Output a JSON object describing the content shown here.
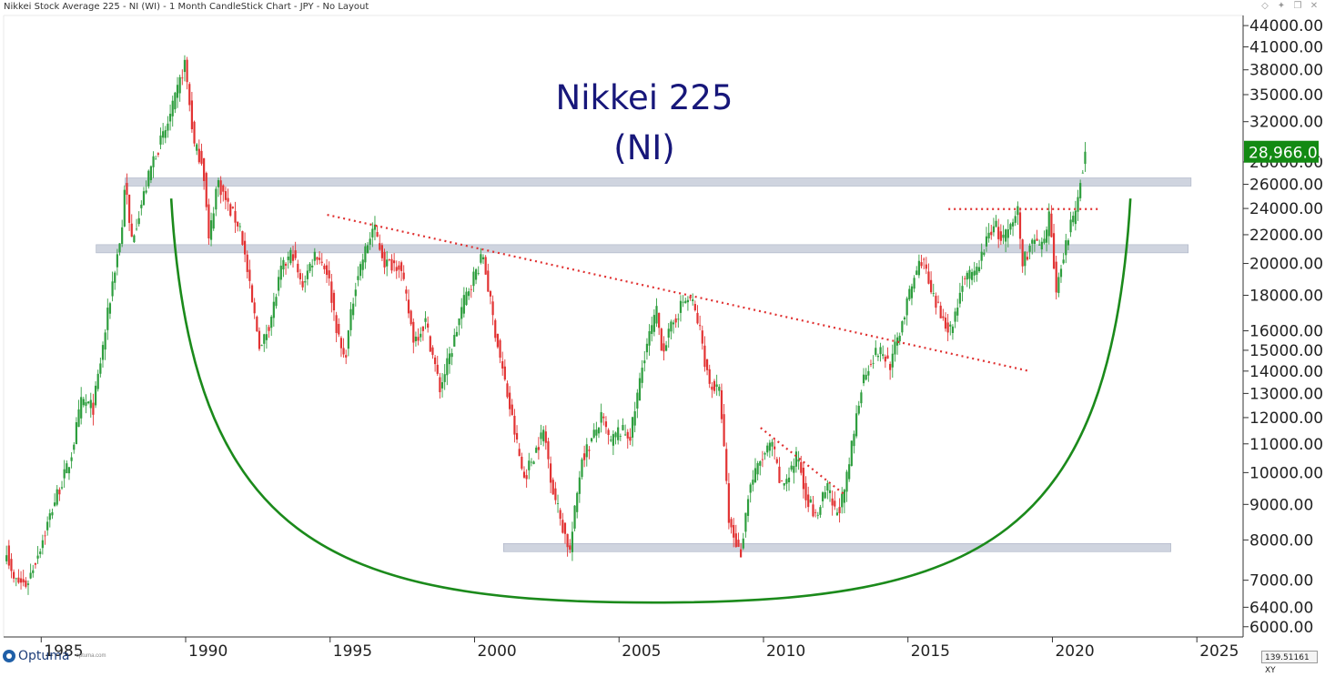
{
  "window": {
    "title": "Nikkei Stock Average 225 - NI (WI) - 1 Month CandleStick Chart - JPY - No Layout",
    "controls": [
      "diamond-icon",
      "pin-icon",
      "restore-icon",
      "close-icon"
    ]
  },
  "logo": {
    "text": "Optuma",
    "sub": "optuma.com"
  },
  "cursor_readout": "139.51161 XY",
  "colors": {
    "up": "#2e9e3e",
    "down": "#e23333",
    "bowl": "#1b8a1b",
    "trend": "#e03030",
    "zone": "#cfd4df",
    "title": "#17177a",
    "price_tag": "#138a13"
  },
  "chart_data": {
    "type": "candlestick",
    "title": "Nikkei 225",
    "subtitle": "(NI)",
    "interval": "1 Month",
    "currency": "JPY",
    "y_scale": "log",
    "ylim": [
      5800,
      45500
    ],
    "xlim": [
      1983.7,
      2026.6
    ],
    "y_ticks": [
      "44000.00",
      "41000.00",
      "38000.00",
      "35000.00",
      "32000.00",
      "28000.00",
      "26000.00",
      "24000.00",
      "22000.00",
      "20000.00",
      "18000.00",
      "16000.00",
      "15000.00",
      "14000.00",
      "13000.00",
      "12000.00",
      "11000.00",
      "10000.00",
      "9000.00",
      "8000.00",
      "7000.00",
      "6400.00",
      "6000.00"
    ],
    "x_ticks": [
      "1985",
      "1990",
      "1995",
      "2000",
      "2005",
      "2010",
      "2015",
      "2020",
      "2025"
    ],
    "last_price": "28,966.01",
    "last_price_value": 28966,
    "path": [
      [
        1983.8,
        7800
      ],
      [
        1984.0,
        7000
      ],
      [
        1984.5,
        6900
      ],
      [
        1985.0,
        7900
      ],
      [
        1985.5,
        9200
      ],
      [
        1986.0,
        10400
      ],
      [
        1986.4,
        12700
      ],
      [
        1986.8,
        12400
      ],
      [
        1987.2,
        15800
      ],
      [
        1987.5,
        19200
      ],
      [
        1987.8,
        22500
      ],
      [
        1987.9,
        26600
      ],
      [
        1988.1,
        21500
      ],
      [
        1988.3,
        23000
      ],
      [
        1988.6,
        25500
      ],
      [
        1988.9,
        28500
      ],
      [
        1989.3,
        31000
      ],
      [
        1989.6,
        34000
      ],
      [
        1989.97,
        38900
      ],
      [
        1990.3,
        29500
      ],
      [
        1990.6,
        28000
      ],
      [
        1990.8,
        21500
      ],
      [
        1991.1,
        26400
      ],
      [
        1991.5,
        24000
      ],
      [
        1991.9,
        22500
      ],
      [
        1992.3,
        17500
      ],
      [
        1992.6,
        15000
      ],
      [
        1993.0,
        17000
      ],
      [
        1993.3,
        19500
      ],
      [
        1993.7,
        20800
      ],
      [
        1994.0,
        18500
      ],
      [
        1994.5,
        20800
      ],
      [
        1994.9,
        19500
      ],
      [
        1995.3,
        15500
      ],
      [
        1995.5,
        14500
      ],
      [
        1995.9,
        19000
      ],
      [
        1996.5,
        22600
      ],
      [
        1996.9,
        20000
      ],
      [
        1997.4,
        20000
      ],
      [
        1997.9,
        15500
      ],
      [
        1998.3,
        16500
      ],
      [
        1998.8,
        13200
      ],
      [
        1999.2,
        15000
      ],
      [
        1999.6,
        17500
      ],
      [
        1999.9,
        18900
      ],
      [
        2000.3,
        20500
      ],
      [
        2000.6,
        17000
      ],
      [
        2000.9,
        14500
      ],
      [
        2001.2,
        12500
      ],
      [
        2001.7,
        9800
      ],
      [
        2002.0,
        10500
      ],
      [
        2002.4,
        11500
      ],
      [
        2002.7,
        9500
      ],
      [
        2003.0,
        8500
      ],
      [
        2003.3,
        7700
      ],
      [
        2003.7,
        10500
      ],
      [
        2004.0,
        11000
      ],
      [
        2004.4,
        12000
      ],
      [
        2004.7,
        11000
      ],
      [
        2005.0,
        11500
      ],
      [
        2005.4,
        11300
      ],
      [
        2005.9,
        15000
      ],
      [
        2006.3,
        17000
      ],
      [
        2006.5,
        15000
      ],
      [
        2006.9,
        16500
      ],
      [
        2007.2,
        17600
      ],
      [
        2007.5,
        17800
      ],
      [
        2007.8,
        16000
      ],
      [
        2008.1,
        13500
      ],
      [
        2008.5,
        13000
      ],
      [
        2008.8,
        8500
      ],
      [
        2009.2,
        7600
      ],
      [
        2009.5,
        9500
      ],
      [
        2009.9,
        10400
      ],
      [
        2010.3,
        11000
      ],
      [
        2010.6,
        9500
      ],
      [
        2010.9,
        10000
      ],
      [
        2011.2,
        10600
      ],
      [
        2011.4,
        9500
      ],
      [
        2011.8,
        8600
      ],
      [
        2012.2,
        9500
      ],
      [
        2012.5,
        8700
      ],
      [
        2012.8,
        9300
      ],
      [
        2013.1,
        11200
      ],
      [
        2013.4,
        13500
      ],
      [
        2013.7,
        14500
      ],
      [
        2014.0,
        15000
      ],
      [
        2014.4,
        14300
      ],
      [
        2014.8,
        16500
      ],
      [
        2015.2,
        19000
      ],
      [
        2015.5,
        20500
      ],
      [
        2015.8,
        18000
      ],
      [
        2016.1,
        17000
      ],
      [
        2016.5,
        16000
      ],
      [
        2016.9,
        19000
      ],
      [
        2017.3,
        19200
      ],
      [
        2017.8,
        22000
      ],
      [
        2018.0,
        23000
      ],
      [
        2018.2,
        21500
      ],
      [
        2018.6,
        22500
      ],
      [
        2018.8,
        24000
      ],
      [
        2018.95,
        20000
      ],
      [
        2019.3,
        21500
      ],
      [
        2019.7,
        21000
      ],
      [
        2019.9,
        23500
      ],
      [
        2020.15,
        18000
      ],
      [
        2020.3,
        20000
      ],
      [
        2020.6,
        22500
      ],
      [
        2020.8,
        23500
      ],
      [
        2020.95,
        26500
      ],
      [
        2021.15,
        28966
      ]
    ],
    "annotations": {
      "zones": [
        {
          "x": [
            1987.9,
            2024.8
          ],
          "y": 26200
        },
        {
          "x": [
            1986.9,
            2024.7
          ],
          "y": 21000
        },
        {
          "x": [
            2001.0,
            2024.1
          ],
          "y": 7800
        }
      ],
      "trendlines": [
        {
          "from": [
            1994.9,
            23500
          ],
          "to": [
            2019.2,
            14000
          ]
        },
        {
          "from": [
            2009.9,
            11600
          ],
          "to": [
            2012.8,
            9300
          ]
        },
        {
          "from": [
            2016.4,
            23950
          ],
          "to": [
            2021.6,
            23950
          ]
        }
      ],
      "bowl": {
        "left": [
          1989.5,
          24800
        ],
        "bottom": [
          2006.2,
          6500
        ],
        "right": [
          2022.7,
          24800
        ]
      }
    }
  }
}
